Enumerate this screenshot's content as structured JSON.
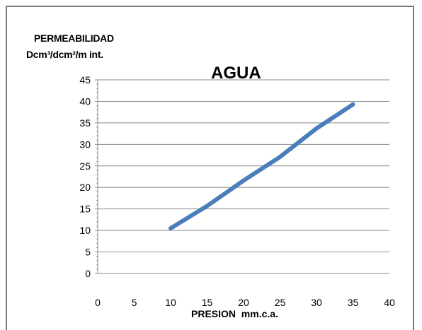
{
  "chart_data": {
    "type": "line",
    "title": "AGUA",
    "xlabel": "PRESION  mm.c.a.",
    "ylabel_line1": "PERMEABILIDAD",
    "ylabel_line2": "Dcm³/dcm²/m int.",
    "xlim": [
      0,
      40
    ],
    "ylim": [
      0,
      45
    ],
    "x_ticks": [
      "0",
      "5",
      "10",
      "15",
      "20",
      "25",
      "30",
      "35",
      "40"
    ],
    "y_ticks": [
      "0",
      "5",
      "10",
      "15",
      "20",
      "25",
      "30",
      "35",
      "40",
      "45"
    ],
    "grid": true,
    "series": [
      {
        "color": "#4a7ebb",
        "x": [
          10,
          15,
          20,
          25,
          30,
          35
        ],
        "y": [
          10.5,
          15.7,
          21.6,
          27.1,
          33.7,
          39.3
        ]
      }
    ]
  }
}
